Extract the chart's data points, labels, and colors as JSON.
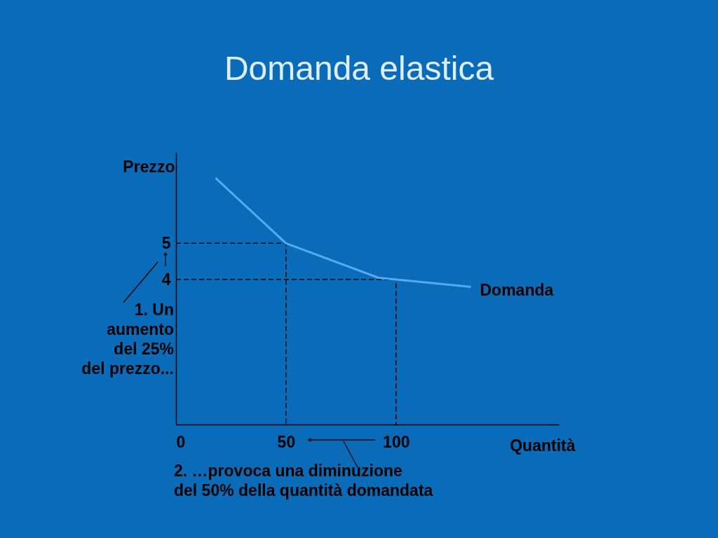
{
  "chart_data": {
    "type": "line",
    "title": "Domanda elastica",
    "xlabel": "Quantità",
    "ylabel": "Prezzo",
    "xlim": [
      0,
      174
    ],
    "ylim": [
      0,
      7.5
    ],
    "xticks": [
      0,
      50,
      100
    ],
    "yticks": [
      4,
      5
    ],
    "series": [
      {
        "name": "Domanda",
        "color": "#55aaf5",
        "x": [
          18,
          50,
          92,
          134
        ],
        "values": [
          6.8,
          5,
          4.05,
          3.8
        ]
      },
      {
        "color": "#000000",
        "line_style": "dashed",
        "x": [
          0,
          50,
          50
        ],
        "values": [
          5,
          5,
          0
        ]
      },
      {
        "color": "#000000",
        "line_style": "dashed",
        "x": [
          0,
          100,
          100
        ],
        "values": [
          4,
          4,
          0
        ]
      }
    ],
    "annotations": [
      "1. Un\naumento\ndel 25%\ndel prezzo...",
      "2. …provoca una diminuzione\ndel 50% della quantità domandata"
    ]
  }
}
